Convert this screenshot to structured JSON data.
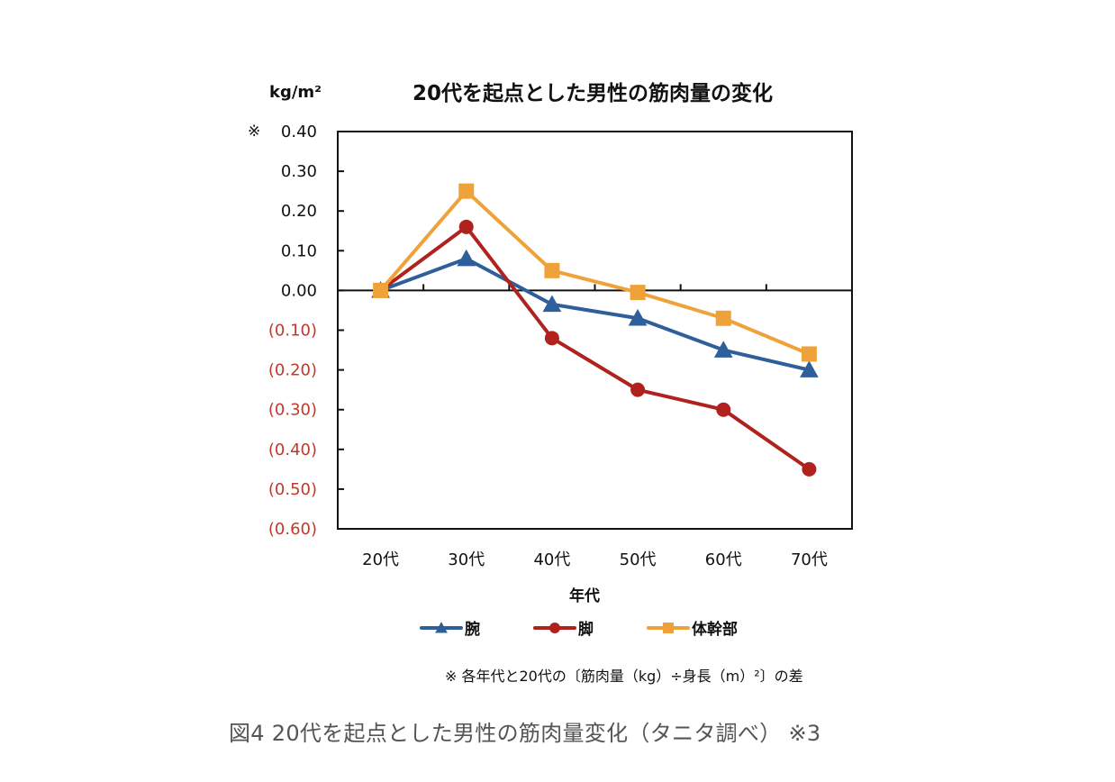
{
  "chart_data": {
    "type": "line",
    "title": "20代を起点とした男性の筋肉量の変化",
    "unit_label": "kg/m²",
    "ylabel_prefix_mark": "※",
    "xlabel": "年代",
    "categories": [
      "20代",
      "30代",
      "40代",
      "50代",
      "60代",
      "70代"
    ],
    "ylim": [
      -0.6,
      0.4
    ],
    "yticks": [
      0.4,
      0.3,
      0.2,
      0.1,
      0.0,
      -0.1,
      -0.2,
      -0.3,
      -0.4,
      -0.5,
      -0.6
    ],
    "ytick_labels": [
      "0.40",
      "0.30",
      "0.20",
      "0.10",
      "0.00",
      "(0.10)",
      "(0.20)",
      "(0.30)",
      "(0.40)",
      "(0.50)",
      "(0.60)"
    ],
    "negative_tick_color": "#c0392b",
    "positive_tick_color": "#111111",
    "grid": false,
    "legend_position": "bottom",
    "series": [
      {
        "name": "腕",
        "color": "#2e5f9a",
        "marker": "triangle",
        "values": [
          0.0,
          0.08,
          -0.035,
          -0.07,
          -0.15,
          -0.2
        ]
      },
      {
        "name": "脚",
        "color": "#b0221e",
        "marker": "circle",
        "values": [
          0.0,
          0.16,
          -0.12,
          -0.25,
          -0.3,
          -0.45
        ]
      },
      {
        "name": "体幹部",
        "color": "#f0a23a",
        "marker": "square",
        "values": [
          0.0,
          0.25,
          0.05,
          -0.005,
          -0.07,
          -0.16
        ]
      }
    ]
  },
  "note": "※ 各年代と20代の〔筋肉量（kg）÷身長（m）²〕の差",
  "caption": "図4 20代を起点とした男性の筋肉量変化（タニタ調べ） ※3"
}
